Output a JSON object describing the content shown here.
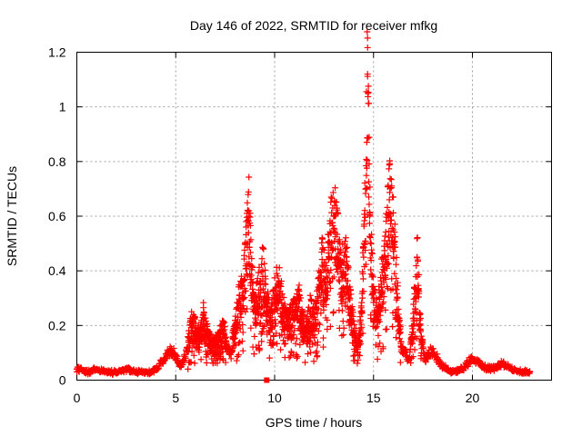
{
  "chart_data": {
    "type": "scatter",
    "title": "Day 146 of 2022, SRMTID for receiver mfkg",
    "xlabel": "GPS time / hours",
    "ylabel": "SRMTID / TECUs",
    "xlim": [
      0,
      24
    ],
    "ylim": [
      0,
      1.2
    ],
    "xticks": [
      "0",
      "5",
      "10",
      "15",
      "20"
    ],
    "yticks": [
      "0",
      "0.2",
      "0.4",
      "0.6",
      "0.8",
      "1",
      "1.2"
    ],
    "grid": true,
    "marker": "+",
    "color": "#ff0000",
    "series": [
      {
        "name": "SRMTID",
        "x": [
          0.0,
          0.5,
          1.0,
          1.5,
          2.0,
          2.5,
          3.0,
          3.5,
          3.8,
          4.0,
          4.2,
          4.4,
          4.6,
          4.8,
          5.0,
          5.2,
          5.4,
          5.6,
          5.8,
          6.0,
          6.2,
          6.4,
          6.6,
          6.8,
          7.0,
          7.2,
          7.4,
          7.6,
          7.8,
          8.0,
          8.2,
          8.4,
          8.6,
          8.7,
          8.8,
          8.9,
          9.0,
          9.2,
          9.4,
          9.6,
          9.8,
          10.0,
          10.2,
          10.4,
          10.6,
          10.8,
          11.0,
          11.2,
          11.4,
          11.6,
          11.8,
          12.0,
          12.2,
          12.4,
          12.6,
          12.8,
          13.0,
          13.2,
          13.4,
          13.6,
          13.8,
          14.0,
          14.2,
          14.4,
          14.5,
          14.6,
          14.7,
          14.8,
          15.0,
          15.2,
          15.4,
          15.6,
          15.8,
          16.0,
          16.2,
          16.4,
          16.6,
          16.8,
          17.0,
          17.2,
          17.4,
          17.6,
          17.8,
          18.0,
          18.5,
          19.0,
          19.5,
          20.0,
          20.5,
          21.0,
          21.5,
          22.0,
          22.5,
          22.9
        ],
        "y": [
          0.04,
          0.03,
          0.04,
          0.03,
          0.03,
          0.04,
          0.03,
          0.03,
          0.03,
          0.04,
          0.06,
          0.08,
          0.1,
          0.11,
          0.09,
          0.05,
          0.07,
          0.12,
          0.2,
          0.18,
          0.14,
          0.22,
          0.16,
          0.13,
          0.12,
          0.15,
          0.18,
          0.12,
          0.1,
          0.2,
          0.28,
          0.32,
          0.5,
          0.6,
          0.42,
          0.3,
          0.25,
          0.33,
          0.4,
          0.28,
          0.2,
          0.3,
          0.35,
          0.26,
          0.2,
          0.22,
          0.24,
          0.3,
          0.2,
          0.18,
          0.25,
          0.2,
          0.3,
          0.42,
          0.35,
          0.5,
          0.6,
          0.48,
          0.38,
          0.42,
          0.3,
          0.18,
          0.12,
          0.25,
          0.45,
          0.7,
          1.12,
          0.6,
          0.3,
          0.22,
          0.35,
          0.45,
          0.66,
          0.55,
          0.3,
          0.12,
          0.1,
          0.08,
          0.2,
          0.45,
          0.15,
          0.08,
          0.1,
          0.1,
          0.05,
          0.03,
          0.04,
          0.08,
          0.05,
          0.04,
          0.06,
          0.04,
          0.03,
          0.03
        ]
      }
    ],
    "outlier": {
      "x": 9.6,
      "y": 0.0
    }
  }
}
